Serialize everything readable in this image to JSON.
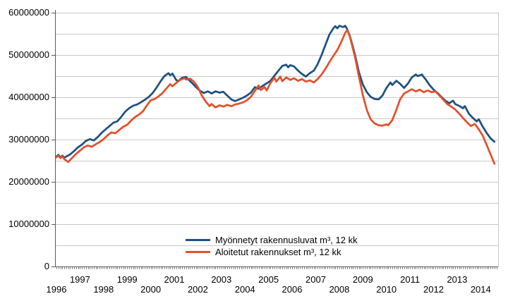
{
  "window": {
    "background": "#ffffff"
  },
  "chart_data": {
    "type": "line",
    "title": "",
    "xlabel": "",
    "ylabel": "",
    "grid": true,
    "x_axis": {
      "range": [
        1995.94,
        2014.74
      ],
      "ticks": [
        1996,
        1997,
        1998,
        1999,
        2000,
        2001,
        2002,
        2003,
        2004,
        2005,
        2006,
        2007,
        2008,
        2009,
        2010,
        2011,
        2012,
        2013,
        2014
      ],
      "tick_label_layout": "staggered-two-rows",
      "minor_ticks": "monthly"
    },
    "y_axis": {
      "range": [
        0,
        60000000
      ],
      "major_step": 10000000,
      "minor_step": 5000000,
      "tick_labels_top_to_bottom": [
        "60000000",
        "50000000",
        "40000000",
        "30000000",
        "20000000",
        "10000000",
        "0"
      ]
    },
    "legend": {
      "position": "inside-bottom-center",
      "border": "none"
    },
    "colors": {
      "gridline": "#c9c9c9",
      "axis_line": "#595959",
      "minor_tick": "#8c8c8c",
      "plot_right_border": "#c9c9c9",
      "label_text": "#000000"
    },
    "series": [
      {
        "name": "Myönnetyt rakennusluvat m³, 12 kk",
        "color": "#1e5180",
        "points": [
          [
            1996.0,
            26000000
          ],
          [
            1996.08,
            26400000
          ],
          [
            1996.17,
            25800000
          ],
          [
            1996.25,
            26200000
          ],
          [
            1996.33,
            25700000
          ],
          [
            1996.42,
            26000000
          ],
          [
            1996.58,
            26500000
          ],
          [
            1996.75,
            27300000
          ],
          [
            1996.92,
            28200000
          ],
          [
            1997.08,
            28800000
          ],
          [
            1997.25,
            29700000
          ],
          [
            1997.42,
            30100000
          ],
          [
            1997.58,
            29800000
          ],
          [
            1997.75,
            30600000
          ],
          [
            1997.92,
            31600000
          ],
          [
            1998.08,
            32400000
          ],
          [
            1998.25,
            33200000
          ],
          [
            1998.42,
            34000000
          ],
          [
            1998.58,
            34300000
          ],
          [
            1998.75,
            35400000
          ],
          [
            1998.92,
            36600000
          ],
          [
            1999.08,
            37400000
          ],
          [
            1999.25,
            38000000
          ],
          [
            1999.42,
            38300000
          ],
          [
            1999.58,
            38800000
          ],
          [
            1999.75,
            39400000
          ],
          [
            1999.92,
            40100000
          ],
          [
            2000.08,
            41000000
          ],
          [
            2000.25,
            42300000
          ],
          [
            2000.42,
            43800000
          ],
          [
            2000.58,
            45000000
          ],
          [
            2000.75,
            45700000
          ],
          [
            2000.83,
            45200000
          ],
          [
            2000.92,
            45600000
          ],
          [
            2001.08,
            44100000
          ],
          [
            2001.17,
            43800000
          ],
          [
            2001.33,
            44600000
          ],
          [
            2001.5,
            44800000
          ],
          [
            2001.58,
            44300000
          ],
          [
            2001.75,
            43400000
          ],
          [
            2001.92,
            42400000
          ],
          [
            2002.08,
            41600000
          ],
          [
            2002.25,
            41000000
          ],
          [
            2002.42,
            41400000
          ],
          [
            2002.58,
            40900000
          ],
          [
            2002.75,
            41400000
          ],
          [
            2002.92,
            41100000
          ],
          [
            2003.08,
            41300000
          ],
          [
            2003.25,
            40400000
          ],
          [
            2003.42,
            39500000
          ],
          [
            2003.58,
            39100000
          ],
          [
            2003.75,
            39500000
          ],
          [
            2003.92,
            39900000
          ],
          [
            2004.08,
            40400000
          ],
          [
            2004.25,
            41100000
          ],
          [
            2004.42,
            42400000
          ],
          [
            2004.58,
            42000000
          ],
          [
            2004.75,
            42700000
          ],
          [
            2004.92,
            43300000
          ],
          [
            2005.08,
            43900000
          ],
          [
            2005.25,
            45100000
          ],
          [
            2005.42,
            46300000
          ],
          [
            2005.58,
            47400000
          ],
          [
            2005.75,
            47700000
          ],
          [
            2005.83,
            47100000
          ],
          [
            2005.92,
            47600000
          ],
          [
            2006.08,
            47300000
          ],
          [
            2006.25,
            46300000
          ],
          [
            2006.42,
            45500000
          ],
          [
            2006.58,
            44900000
          ],
          [
            2006.75,
            45700000
          ],
          [
            2006.92,
            46300000
          ],
          [
            2007.08,
            47800000
          ],
          [
            2007.25,
            50000000
          ],
          [
            2007.42,
            52500000
          ],
          [
            2007.58,
            54800000
          ],
          [
            2007.75,
            56300000
          ],
          [
            2007.83,
            56800000
          ],
          [
            2007.92,
            56300000
          ],
          [
            2008.0,
            56900000
          ],
          [
            2008.17,
            56600000
          ],
          [
            2008.25,
            56900000
          ],
          [
            2008.33,
            56200000
          ],
          [
            2008.5,
            53500000
          ],
          [
            2008.67,
            50000000
          ],
          [
            2008.83,
            46000000
          ],
          [
            2009.0,
            43000000
          ],
          [
            2009.17,
            41200000
          ],
          [
            2009.33,
            40100000
          ],
          [
            2009.5,
            39600000
          ],
          [
            2009.67,
            39500000
          ],
          [
            2009.83,
            40400000
          ],
          [
            2010.0,
            42200000
          ],
          [
            2010.17,
            43500000
          ],
          [
            2010.25,
            42900000
          ],
          [
            2010.42,
            43900000
          ],
          [
            2010.58,
            43200000
          ],
          [
            2010.75,
            42200000
          ],
          [
            2010.92,
            43300000
          ],
          [
            2011.08,
            44700000
          ],
          [
            2011.25,
            45400000
          ],
          [
            2011.33,
            45000000
          ],
          [
            2011.5,
            45400000
          ],
          [
            2011.67,
            44200000
          ],
          [
            2011.83,
            42900000
          ],
          [
            2012.0,
            41800000
          ],
          [
            2012.17,
            41000000
          ],
          [
            2012.33,
            40100000
          ],
          [
            2012.5,
            39200000
          ],
          [
            2012.67,
            38600000
          ],
          [
            2012.83,
            39200000
          ],
          [
            2012.92,
            38400000
          ],
          [
            2013.08,
            38000000
          ],
          [
            2013.25,
            37400000
          ],
          [
            2013.33,
            37900000
          ],
          [
            2013.5,
            36100000
          ],
          [
            2013.67,
            35100000
          ],
          [
            2013.83,
            34300000
          ],
          [
            2013.92,
            34800000
          ],
          [
            2014.08,
            33100000
          ],
          [
            2014.25,
            31600000
          ],
          [
            2014.42,
            30300000
          ],
          [
            2014.58,
            29500000
          ]
        ]
      },
      {
        "name": "Aloitetut rakennukset m³, 12 kk",
        "color": "#e2512c",
        "points": [
          [
            1996.0,
            25800000
          ],
          [
            1996.08,
            26200000
          ],
          [
            1996.17,
            25600000
          ],
          [
            1996.25,
            26000000
          ],
          [
            1996.33,
            25400000
          ],
          [
            1996.5,
            24700000
          ],
          [
            1996.67,
            25700000
          ],
          [
            1996.83,
            26600000
          ],
          [
            1997.0,
            27400000
          ],
          [
            1997.17,
            28200000
          ],
          [
            1997.33,
            28600000
          ],
          [
            1997.5,
            28300000
          ],
          [
            1997.67,
            28900000
          ],
          [
            1997.83,
            29400000
          ],
          [
            1998.0,
            30100000
          ],
          [
            1998.17,
            31000000
          ],
          [
            1998.33,
            31700000
          ],
          [
            1998.5,
            31500000
          ],
          [
            1998.67,
            32300000
          ],
          [
            1998.83,
            33000000
          ],
          [
            1999.0,
            33500000
          ],
          [
            1999.17,
            34500000
          ],
          [
            1999.33,
            35300000
          ],
          [
            1999.5,
            35900000
          ],
          [
            1999.67,
            36700000
          ],
          [
            1999.83,
            38000000
          ],
          [
            2000.0,
            39300000
          ],
          [
            2000.17,
            39600000
          ],
          [
            2000.33,
            40200000
          ],
          [
            2000.5,
            41000000
          ],
          [
            2000.67,
            42100000
          ],
          [
            2000.83,
            43100000
          ],
          [
            2000.92,
            42600000
          ],
          [
            2001.08,
            43400000
          ],
          [
            2001.25,
            44100000
          ],
          [
            2001.42,
            44500000
          ],
          [
            2001.5,
            44200000
          ],
          [
            2001.67,
            44400000
          ],
          [
            2001.83,
            43700000
          ],
          [
            2002.0,
            42400000
          ],
          [
            2002.17,
            40400000
          ],
          [
            2002.33,
            39000000
          ],
          [
            2002.5,
            37900000
          ],
          [
            2002.58,
            38400000
          ],
          [
            2002.75,
            37600000
          ],
          [
            2002.92,
            38100000
          ],
          [
            2003.08,
            37800000
          ],
          [
            2003.25,
            38200000
          ],
          [
            2003.42,
            37900000
          ],
          [
            2003.58,
            38300000
          ],
          [
            2003.75,
            38500000
          ],
          [
            2003.92,
            38800000
          ],
          [
            2004.08,
            39300000
          ],
          [
            2004.25,
            40100000
          ],
          [
            2004.42,
            41500000
          ],
          [
            2004.58,
            42800000
          ],
          [
            2004.67,
            41700000
          ],
          [
            2004.83,
            42400000
          ],
          [
            2004.92,
            41600000
          ],
          [
            2005.08,
            43400000
          ],
          [
            2005.25,
            44600000
          ],
          [
            2005.33,
            43700000
          ],
          [
            2005.5,
            44900000
          ],
          [
            2005.58,
            43800000
          ],
          [
            2005.75,
            44700000
          ],
          [
            2005.92,
            44100000
          ],
          [
            2006.08,
            44500000
          ],
          [
            2006.25,
            43900000
          ],
          [
            2006.42,
            44300000
          ],
          [
            2006.58,
            43700000
          ],
          [
            2006.75,
            44000000
          ],
          [
            2006.92,
            43500000
          ],
          [
            2007.08,
            44300000
          ],
          [
            2007.25,
            45400000
          ],
          [
            2007.42,
            46800000
          ],
          [
            2007.58,
            48300000
          ],
          [
            2007.75,
            49800000
          ],
          [
            2007.92,
            51200000
          ],
          [
            2008.08,
            53000000
          ],
          [
            2008.25,
            55200000
          ],
          [
            2008.33,
            55900000
          ],
          [
            2008.42,
            55000000
          ],
          [
            2008.5,
            53200000
          ],
          [
            2008.67,
            49500000
          ],
          [
            2008.83,
            45000000
          ],
          [
            2009.0,
            40500000
          ],
          [
            2009.17,
            37000000
          ],
          [
            2009.33,
            34800000
          ],
          [
            2009.5,
            33800000
          ],
          [
            2009.67,
            33400000
          ],
          [
            2009.83,
            33300000
          ],
          [
            2010.0,
            33600000
          ],
          [
            2010.08,
            33400000
          ],
          [
            2010.25,
            34600000
          ],
          [
            2010.42,
            37000000
          ],
          [
            2010.58,
            39500000
          ],
          [
            2010.75,
            40900000
          ],
          [
            2010.92,
            41400000
          ],
          [
            2011.08,
            41900000
          ],
          [
            2011.25,
            41400000
          ],
          [
            2011.42,
            41800000
          ],
          [
            2011.58,
            41200000
          ],
          [
            2011.75,
            41600000
          ],
          [
            2011.92,
            41200000
          ],
          [
            2012.08,
            41400000
          ],
          [
            2012.25,
            40400000
          ],
          [
            2012.42,
            39400000
          ],
          [
            2012.58,
            38400000
          ],
          [
            2012.75,
            37800000
          ],
          [
            2012.92,
            37100000
          ],
          [
            2013.08,
            36200000
          ],
          [
            2013.25,
            35100000
          ],
          [
            2013.42,
            34100000
          ],
          [
            2013.58,
            33200000
          ],
          [
            2013.75,
            33700000
          ],
          [
            2013.92,
            32400000
          ],
          [
            2014.08,
            31000000
          ],
          [
            2014.25,
            28800000
          ],
          [
            2014.42,
            26500000
          ],
          [
            2014.58,
            24300000
          ]
        ]
      }
    ]
  }
}
